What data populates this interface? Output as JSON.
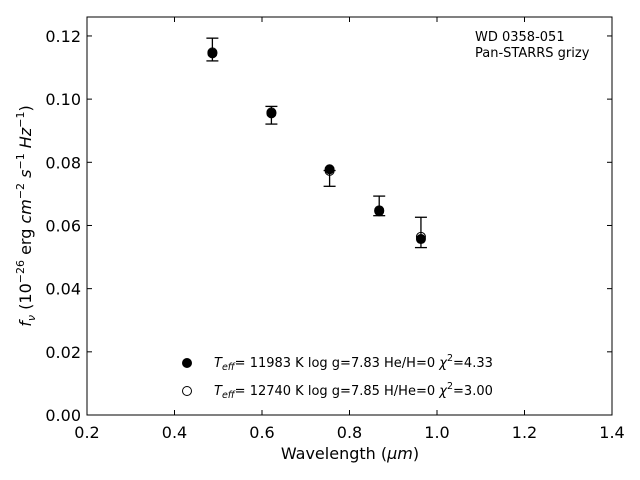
{
  "chart_data": {
    "type": "scatter",
    "annotation": [
      "WD 0358-051",
      "Pan-STARRS grizy"
    ],
    "xlabel": "Wavelength",
    "xlabel_unit": "μm",
    "ylabel_prefix": "f",
    "ylabel_sub": "ν",
    "ylabel_units": "erg cm s Hz",
    "xlim": [
      0.2,
      1.4
    ],
    "ylim": [
      0.0,
      0.126
    ],
    "xticks": [
      "0.2",
      "0.4",
      "0.6",
      "0.8",
      "1.0",
      "1.2",
      "1.4"
    ],
    "yticks": [
      "0.00",
      "0.02",
      "0.04",
      "0.06",
      "0.08",
      "0.10",
      "0.12"
    ],
    "grid": false,
    "legend_placement": "bottom-center",
    "observed": {
      "x": [
        0.4866,
        0.6215,
        0.7545,
        0.8679,
        0.9633
      ],
      "y": [
        0.1157,
        0.0949,
        0.0749,
        0.0662,
        0.0578
      ],
      "yerr": [
        0.0036,
        0.0028,
        0.0025,
        0.0031,
        0.0048
      ]
    },
    "series": [
      {
        "name": "Teff= 11983 K  log g=7.83  He/H=0  χ2=4.33",
        "legend": {
          "teff": "11983 K",
          "logg": "log g=7.83",
          "comp": "He/H=0",
          "chi2": "4.33"
        },
        "marker": "filled-circle",
        "x": [
          0.4866,
          0.6215,
          0.7545,
          0.8679,
          0.9633
        ],
        "y": [
          0.1145,
          0.0955,
          0.0778,
          0.0645,
          0.0557
        ]
      },
      {
        "name": "Teff= 12740 K  log g=7.85  H/He=0  χ2=3.00",
        "legend": {
          "teff": "12740 K",
          "logg": "log g=7.85",
          "comp": "H/He=0",
          "chi2": "3.00"
        },
        "marker": "open-circle",
        "x": [
          0.4866,
          0.6215,
          0.7545,
          0.8679,
          0.9633
        ],
        "y": [
          0.1148,
          0.0958,
          0.0773,
          0.0648,
          0.0564
        ]
      }
    ]
  }
}
